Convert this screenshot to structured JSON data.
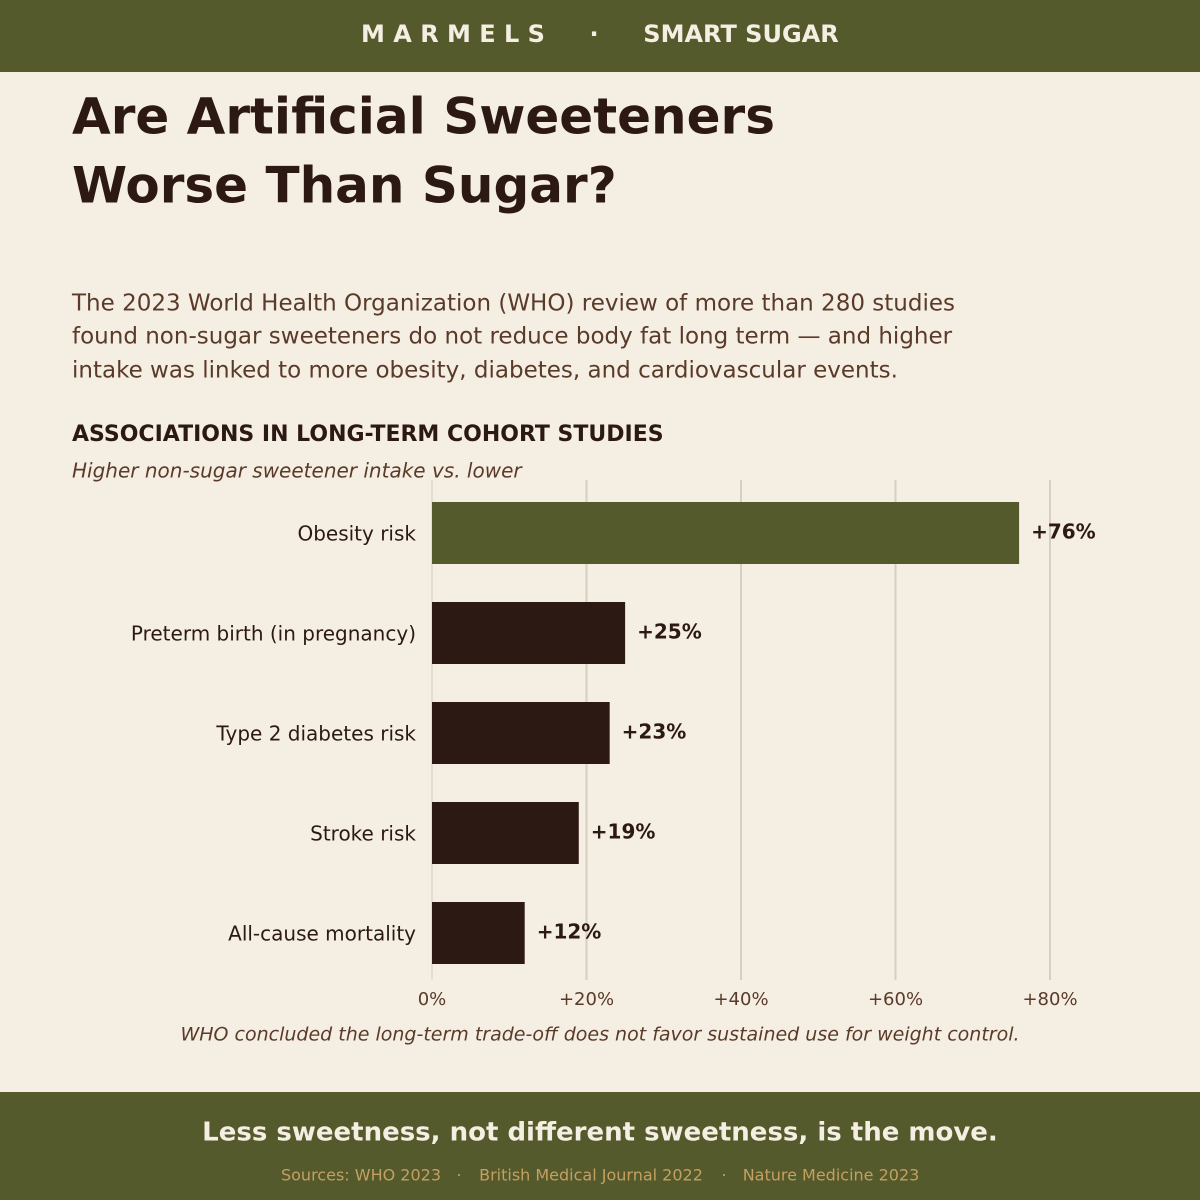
{
  "header": {
    "brand": "M A R M E L S",
    "separator": "·",
    "product": "SMART SUGAR"
  },
  "title_lines": [
    "Are Artificial Sweeteners",
    "Worse Than Sugar?"
  ],
  "intro_lines": [
    "The 2023 World Health Organization (WHO) review of more than 280 studies",
    "found non-sugar sweeteners do not reduce body fat long term — and higher",
    "intake was linked to more obesity, diabetes, and cardiovascular events."
  ],
  "chart_data": {
    "type": "bar",
    "orientation": "horizontal",
    "title": "ASSOCIATIONS IN LONG-TERM COHORT STUDIES",
    "subtitle": "Higher non-sugar sweetener intake vs. lower",
    "categories": [
      "Obesity risk",
      "Preterm birth (in pregnancy)",
      "Type 2 diabetes risk",
      "Stroke risk",
      "All-cause mortality"
    ],
    "values": [
      76,
      25,
      23,
      19,
      12
    ],
    "value_labels": [
      "+76%",
      "+25%",
      "+23%",
      "+19%",
      "+12%"
    ],
    "colors": [
      "#545a2c",
      "#2c1914",
      "#2c1914",
      "#2c1914",
      "#2c1914"
    ],
    "xlim": [
      0,
      80
    ],
    "xticks": [
      {
        "value": 0,
        "label": "0%"
      },
      {
        "value": 20,
        "label": "+20%"
      },
      {
        "value": 40,
        "label": "+40%"
      },
      {
        "value": 60,
        "label": "+60%"
      },
      {
        "value": 80,
        "label": "+80%"
      }
    ],
    "grid": true,
    "note": "WHO concluded the long-term trade-off does not favor sustained use for weight control."
  },
  "footer": {
    "tagline": "Less sweetness, not different sweetness, is the move.",
    "sources": [
      "Sources: WHO 2023",
      "British Medical Journal 2022",
      "Nature Medicine 2023"
    ],
    "separator": "·"
  }
}
